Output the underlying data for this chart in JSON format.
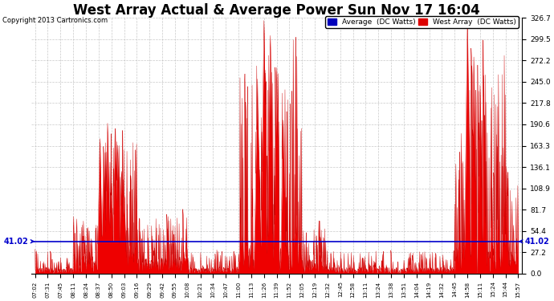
{
  "title": "West Array Actual & Average Power Sun Nov 17 16:04",
  "copyright": "Copyright 2013 Cartronics.com",
  "avg_value": 41.02,
  "ymax": 326.7,
  "ymin": 0.0,
  "yticks": [
    0.0,
    27.2,
    54.4,
    81.7,
    108.9,
    136.1,
    163.3,
    190.6,
    217.8,
    245.0,
    272.2,
    299.5,
    326.7
  ],
  "legend_avg_color": "#0000bb",
  "legend_west_color": "#dd0000",
  "avg_line_color": "#0000cc",
  "fill_color": "#ee0000",
  "background_color": "#ffffff",
  "grid_color": "#bbbbbb",
  "title_fontsize": 12,
  "xtick_labels": [
    "07:02",
    "07:31",
    "07:45",
    "08:11",
    "08:24",
    "08:37",
    "08:50",
    "09:03",
    "09:16",
    "09:29",
    "09:42",
    "09:55",
    "10:08",
    "10:21",
    "10:34",
    "10:47",
    "11:00",
    "11:13",
    "11:26",
    "11:39",
    "11:52",
    "12:05",
    "12:19",
    "12:32",
    "12:45",
    "12:58",
    "13:11",
    "13:24",
    "13:38",
    "13:51",
    "14:04",
    "14:19",
    "14:32",
    "14:45",
    "14:58",
    "15:11",
    "15:24",
    "15:44",
    "15:57"
  ],
  "n_dense": 2000
}
